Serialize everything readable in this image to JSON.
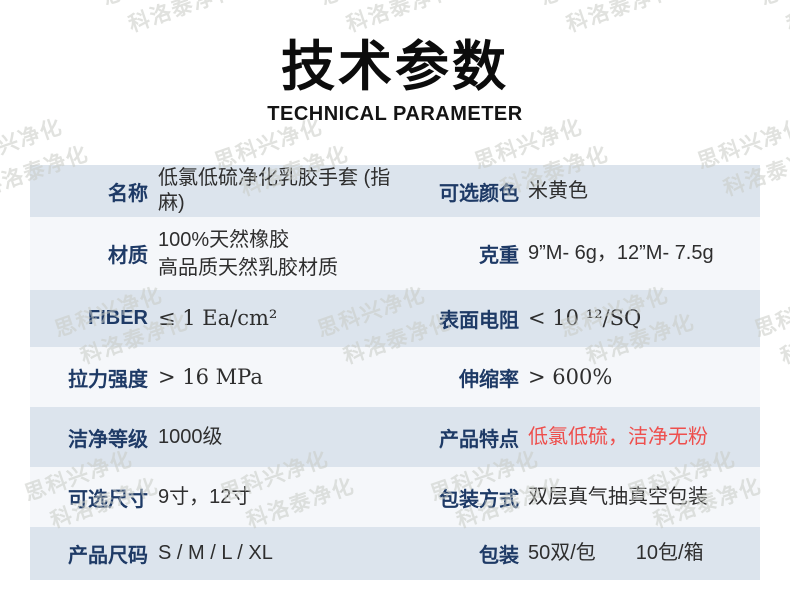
{
  "header": {
    "title": "技术参数",
    "subtitle": "TECHNICAL PARAMETER"
  },
  "colors": {
    "accent_navy": "#1e3a66",
    "feature_red": "#ee4f4d",
    "row_light": "#dce4ed",
    "row_white": "#f5f7fa"
  },
  "watermark": {
    "lines": [
      "思科兴净化",
      "科洛泰净化"
    ]
  },
  "table": {
    "rows": [
      {
        "left": {
          "label": "名称",
          "value": "低氯低硫净化乳胶手套 (指麻)"
        },
        "right": {
          "label": "可选颜色",
          "value": "米黄色"
        }
      },
      {
        "left": {
          "label": "材质",
          "value_lines": [
            "100%天然橡胶",
            "高品质天然乳胶材质"
          ]
        },
        "right": {
          "label": "克重",
          "value": "9”M- 6g，12”M- 7.5g"
        }
      },
      {
        "left": {
          "label": "FIBER",
          "value": "≤ 1 Ea/cm²",
          "serif": true
        },
        "right": {
          "label": "表面电阻",
          "value": "< 10 ¹²/SQ",
          "serif": true
        }
      },
      {
        "left": {
          "label": "拉力强度",
          "value": "> 16 MPa",
          "serif": true
        },
        "right": {
          "label": "伸缩率",
          "value": "> 600%",
          "serif": true
        }
      },
      {
        "left": {
          "label": "洁净等级",
          "value": "1000级"
        },
        "right": {
          "label": "产品特点",
          "value": "低氯低硫，洁净无粉",
          "red": true
        }
      },
      {
        "left": {
          "label": "可选尺寸",
          "value": "9寸，12寸"
        },
        "right": {
          "label": "包装方式",
          "value": "双层真气抽真空包装"
        }
      },
      {
        "left": {
          "label": "产品尺码",
          "value": "S / M / L / XL"
        },
        "right": {
          "label": "包装",
          "value": "50双/包　　10包/箱"
        }
      }
    ]
  }
}
